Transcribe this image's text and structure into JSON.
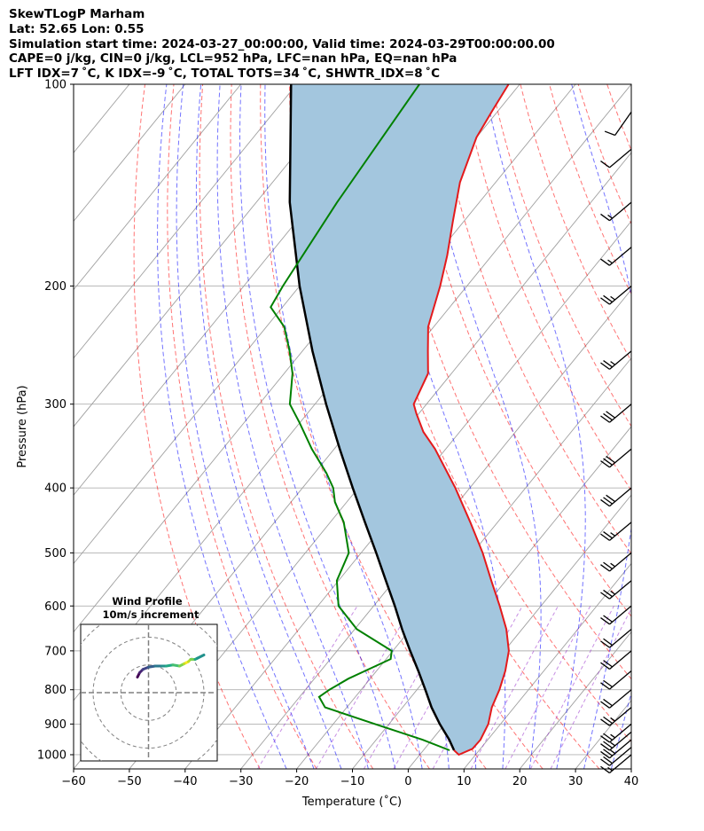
{
  "header": {
    "line1": "SkewTLogP Marham",
    "line2": "Lat: 52.65   Lon: 0.55",
    "line3": "Simulation start time: 2024-03-27_00:00:00, Valid time: 2024-03-29T00:00:00.00",
    "line4": "CAPE=0 j/kg, CIN=0 j/kg, LCL=952 hPa, LFC=nan hPa, EQ=nan hPa",
    "line5": "LFT IDX=7 ˚C, K IDX=-9 ˚C, TOTAL TOTS=34 ˚C, SHWTR_IDX=8 ˚C"
  },
  "colors": {
    "temperature": "#e41a1c",
    "dewpoint": "#008000",
    "parcel": "#000000",
    "cape_fill": "#a3c6de",
    "dry_adiabat": "#ff0000",
    "moist_adiabat": "#0000ff",
    "mixing_ratio": "#9932cc",
    "isotherm": "#a0a0a0"
  },
  "chart_data": {
    "type": "line",
    "xlabel": "Temperature (˚C)",
    "ylabel": "Pressure (hPa)",
    "xlim": [
      -60,
      40
    ],
    "ylim": [
      1050,
      100
    ],
    "y_scale": "log",
    "x_ticks": [
      "−60",
      "−50",
      "−40",
      "−30",
      "−20",
      "−10",
      "0",
      "10",
      "20",
      "30",
      "40"
    ],
    "y_ticks": [
      "100",
      "200",
      "300",
      "400",
      "500",
      "600",
      "700",
      "800",
      "900",
      "1000"
    ],
    "grid": true,
    "series": [
      {
        "key": "temperature",
        "pressure": [
          985,
          1000,
          980,
          950,
          900,
          850,
          800,
          750,
          700,
          650,
          600,
          550,
          500,
          450,
          400,
          350,
          330,
          310,
          300,
          270,
          250,
          230,
          200,
          180,
          160,
          140,
          120,
          110,
          100
        ],
        "temperature": [
          5.5,
          7.0,
          8.6,
          8.7,
          7.8,
          6.0,
          4.8,
          3.1,
          0.8,
          -2.8,
          -7.4,
          -12.6,
          -18.2,
          -24.9,
          -32.6,
          -41.9,
          -46.5,
          -50.4,
          -52.3,
          -54.2,
          -57.5,
          -61.0,
          -64.8,
          -68.0,
          -72.0,
          -76.4,
          -80.0,
          -81.0,
          -82.0
        ]
      },
      {
        "key": "dewpoint",
        "pressure": [
          985,
          950,
          900,
          850,
          820,
          800,
          770,
          720,
          700,
          650,
          600,
          550,
          500,
          450,
          420,
          400,
          380,
          350,
          320,
          300,
          270,
          250,
          230,
          215,
          200,
          150,
          100
        ],
        "temperature": [
          4.7,
          -1.7,
          -12.5,
          -23.9,
          -26.5,
          -25.7,
          -23.9,
          -19.2,
          -20.2,
          -29.6,
          -36.3,
          -40.3,
          -42.2,
          -47.6,
          -52.1,
          -54.5,
          -57.9,
          -64.0,
          -70.0,
          -74.5,
          -78.5,
          -82.3,
          -86.8,
          -92.1,
          -93.0,
          -95.5,
          -98.0
        ]
      },
      {
        "key": "parcel",
        "pressure": [
          985,
          950,
          900,
          850,
          800,
          750,
          700,
          650,
          600,
          550,
          500,
          450,
          400,
          350,
          300,
          250,
          200,
          150,
          100
        ],
        "temperature": [
          5.5,
          3.1,
          -0.9,
          -4.8,
          -8.5,
          -12.5,
          -16.9,
          -21.5,
          -26.2,
          -31.5,
          -37.3,
          -43.8,
          -51.0,
          -59.0,
          -68.0,
          -78.2,
          -90.0,
          -104.0,
          -121.0
        ]
      }
    ],
    "wind_barbs": {
      "pressure": [
        1000,
        975,
        950,
        925,
        900,
        850,
        800,
        750,
        700,
        650,
        600,
        550,
        500,
        450,
        400,
        350,
        300,
        250,
        200,
        175,
        150,
        125,
        110
      ],
      "speed_kt": [
        15,
        20,
        25,
        25,
        25,
        25,
        20,
        20,
        20,
        20,
        20,
        25,
        25,
        25,
        30,
        30,
        30,
        25,
        25,
        15,
        15,
        10,
        10
      ],
      "direction_deg": [
        230,
        230,
        230,
        230,
        230,
        230,
        230,
        230,
        230,
        230,
        230,
        230,
        230,
        230,
        230,
        230,
        230,
        230,
        230,
        230,
        230,
        230,
        215
      ]
    },
    "wind_profile_inset": {
      "title": "Wind Profile",
      "subtitle": "10m/s increment",
      "rings_ms": [
        10,
        20,
        30
      ],
      "hodograph_u": [
        -5,
        -4,
        -2.5,
        0,
        3,
        6,
        8,
        11,
        14,
        16,
        17,
        18,
        19,
        21,
        22,
        25
      ],
      "hodograph_v": [
        7,
        9,
        10.5,
        11.5,
        12,
        12,
        12,
        12.5,
        12,
        13,
        13.5,
        14,
        15,
        15,
        15.5,
        17
      ]
    }
  }
}
